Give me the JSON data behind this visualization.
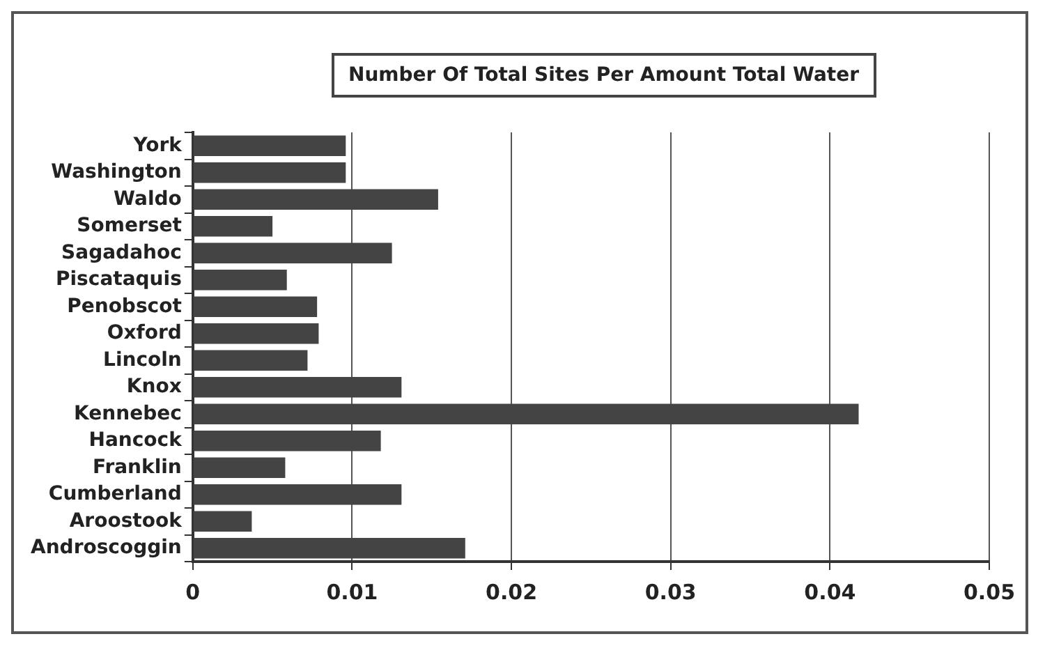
{
  "chart_data": {
    "type": "bar",
    "orientation": "horizontal",
    "title": "Number Of Total Sites Per Amount Total Water",
    "categories": [
      "York",
      "Washington",
      "Waldo",
      "Somerset",
      "Sagadahoc",
      "Piscataquis",
      "Penobscot",
      "Oxford",
      "Lincoln",
      "Knox",
      "Kennebec",
      "Hancock",
      "Franklin",
      "Cumberland",
      "Aroostook",
      "Androscoggin"
    ],
    "values": [
      0.0096,
      0.0096,
      0.0154,
      0.005,
      0.0125,
      0.0059,
      0.0078,
      0.0079,
      0.0072,
      0.0131,
      0.0418,
      0.0118,
      0.0058,
      0.0131,
      0.0037,
      0.0171
    ],
    "color": "#444444",
    "xlim": [
      0,
      0.05
    ],
    "xticks": [
      0,
      0.01,
      0.02,
      0.03,
      0.04,
      0.05
    ],
    "grid": "x",
    "legend": false
  }
}
